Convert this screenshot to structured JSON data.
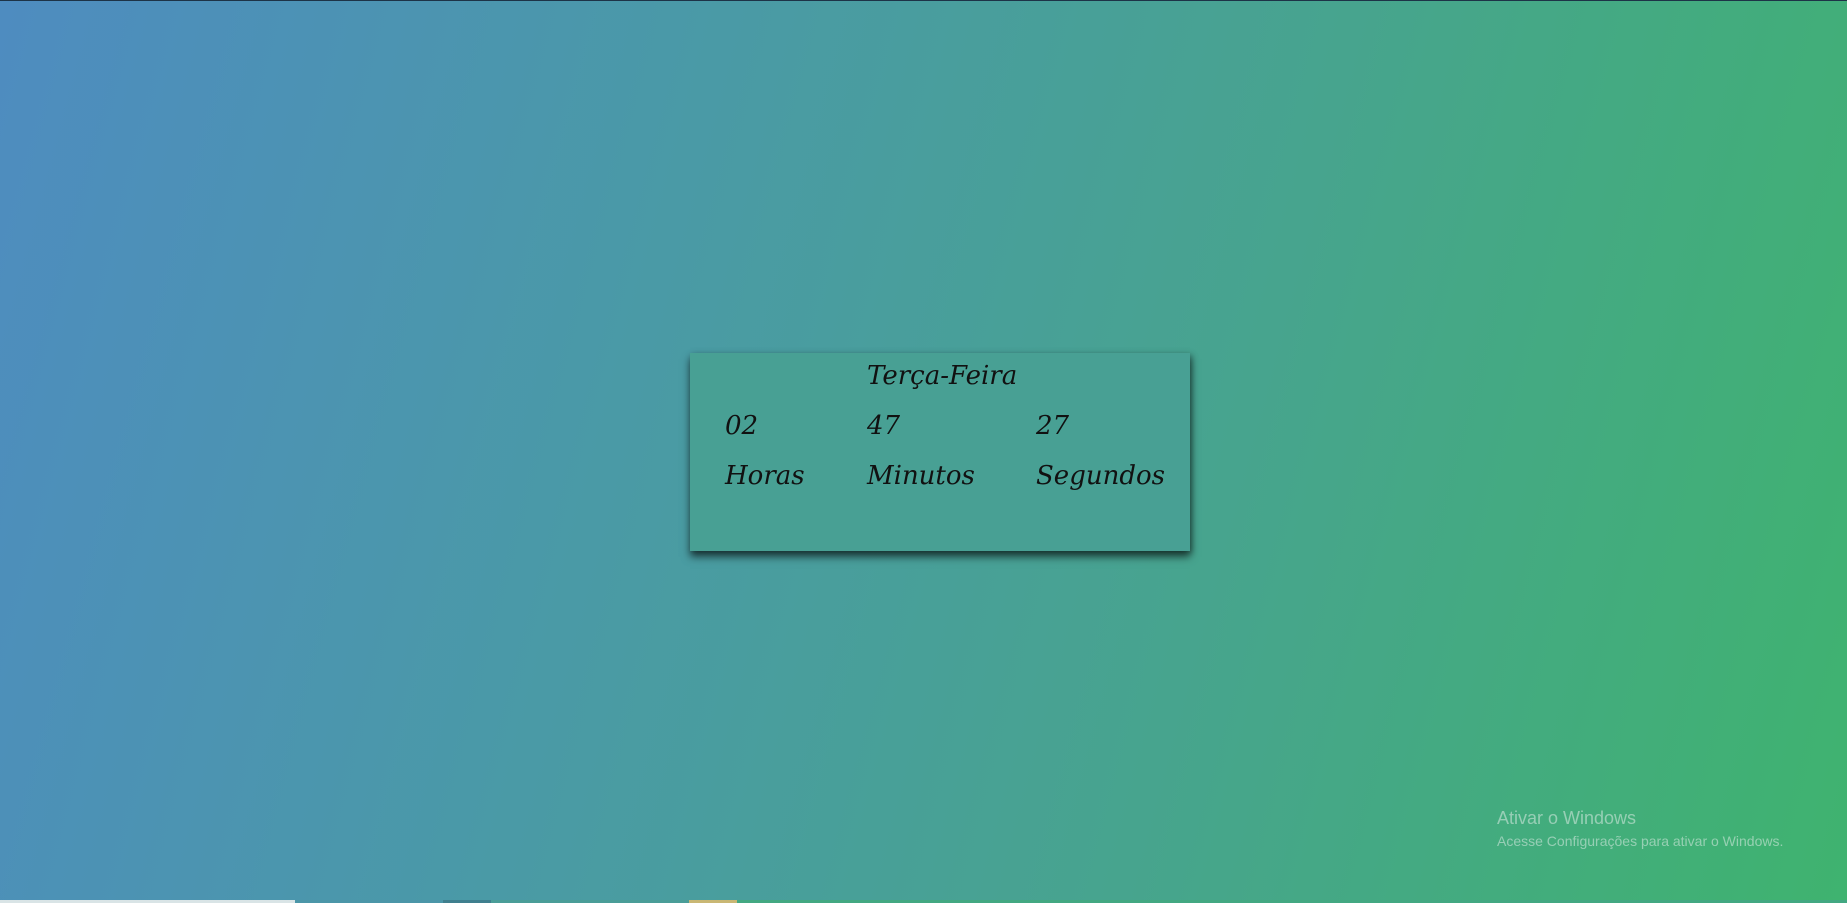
{
  "clock": {
    "day": "Terça-Feira",
    "hours": "02",
    "minutes": "47",
    "seconds": "27",
    "hours_label": "Horas",
    "minutes_label": "Minutos",
    "seconds_label": "Segundos"
  },
  "activation_notice": {
    "title": "Ativar o Windows",
    "subtitle": "Acesse Configurações para ativar o Windows."
  },
  "colors": {
    "gradient_start": "#4e8cc0",
    "gradient_end": "#3fb36f",
    "card_background": "#48a094",
    "text": "#111111"
  }
}
